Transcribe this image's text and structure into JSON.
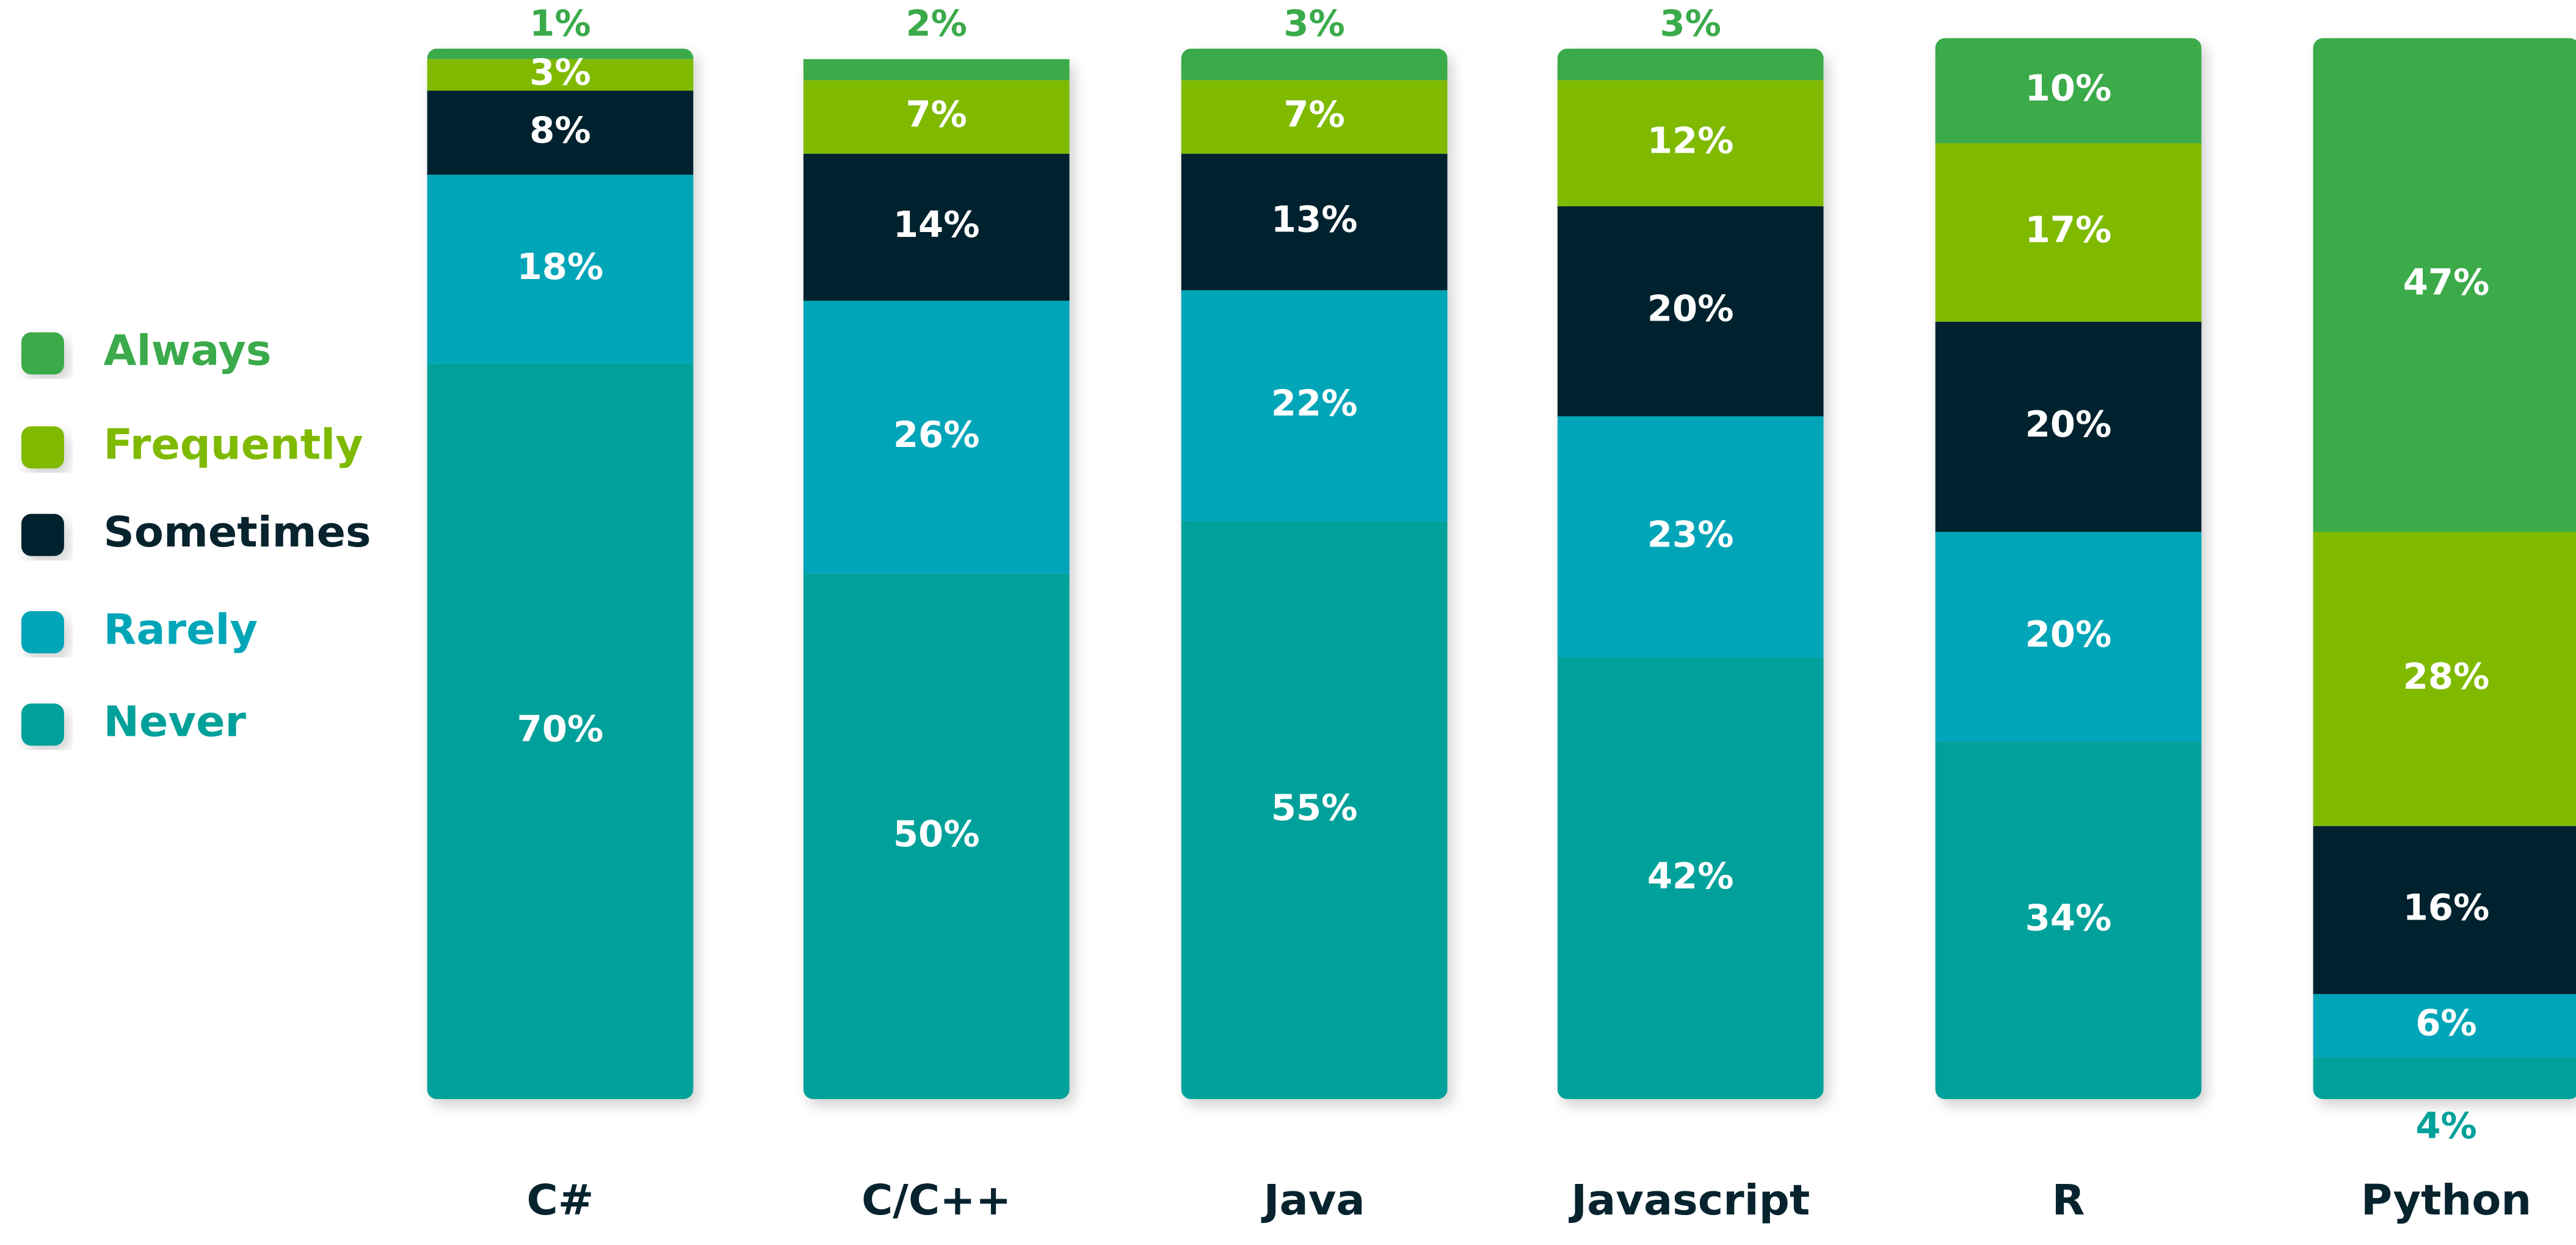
{
  "chart_data": {
    "type": "stacked_bar",
    "categories": [
      "C#",
      "C/C++",
      "Java",
      "Javascript",
      "R",
      "Python"
    ],
    "series": [
      {
        "name": "Always",
        "color": "#3aaa4a",
        "values": [
          1,
          2,
          3,
          3,
          10,
          47
        ]
      },
      {
        "name": "Frequently",
        "color": "#7fba00",
        "values": [
          3,
          7,
          7,
          12,
          17,
          28
        ]
      },
      {
        "name": "Sometimes",
        "color": "#06232e",
        "values": [
          8,
          14,
          13,
          20,
          20,
          16
        ]
      },
      {
        "name": "Rarely",
        "color": "#00a5b8",
        "values": [
          18,
          26,
          22,
          23,
          20,
          6
        ]
      },
      {
        "name": "Never",
        "color": "#00a19a",
        "values": [
          70,
          50,
          55,
          42,
          34,
          4
        ]
      }
    ],
    "value_labels": [
      [
        "1%",
        "2%",
        "3%",
        "3%",
        "10%",
        "47%"
      ],
      [
        "3%",
        "7%",
        "7%",
        "12%",
        "17%",
        "28%"
      ],
      [
        "8%",
        "14%",
        "13%",
        "20%",
        "20%",
        "16%"
      ],
      [
        "18%",
        "26%",
        "22%",
        "23%",
        "20%",
        "6%"
      ],
      [
        "70%",
        "50%",
        "55%",
        "42%",
        "34%",
        "4%"
      ]
    ],
    "ylim": [
      0,
      100
    ],
    "legend": "left"
  }
}
